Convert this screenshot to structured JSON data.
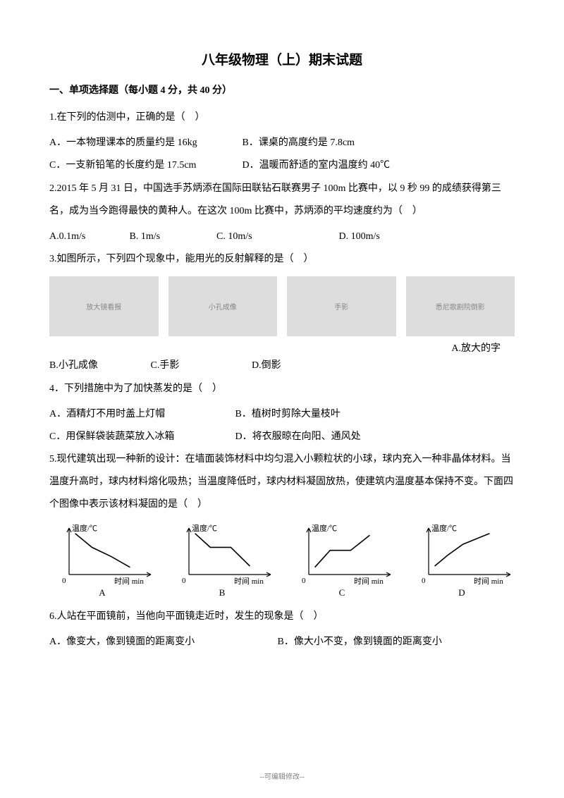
{
  "title": "八年级物理（上）期末试题",
  "section1_heading": "一、单项选择题（每小题 4 分，共 40 分）",
  "q1": {
    "stem": "1.在下列的估测中，正确的是（　）",
    "A": "A．一本物理课本的质量约是 16kg",
    "B": "B．课桌的高度约是 7.8cm",
    "C": "C．一支新铅笔的长度约是 17.5cm",
    "D": "D．温暖而舒适的室内温度约 40℃"
  },
  "q2": {
    "stem": "2.2015 年 5 月 31 日，中国选手苏炳添在国际田联钻石联赛男子 100m 比赛中，以 9 秒 99 的成绩获得第三名，成为当今跑得最快的黄种人。在这次 100m 比赛中，苏炳添的平均速度约为（　）",
    "A": "A.0.1m/s",
    "B": "B. 1m/s",
    "C": "C. 10m/s",
    "D": "D. 100m/s"
  },
  "q3": {
    "stem": "3.如图所示，下列四个现象中，能用光的反射解释的是（　）",
    "img_alt_A": "放大镜看报",
    "img_alt_B": "小孔成像",
    "img_alt_C": "手影",
    "img_alt_D": "悉尼歌剧院倒影",
    "opt_A_tail": "A.放大的字",
    "B": "B.小孔成像",
    "C": "C.手影",
    "D": "D.倒影"
  },
  "q4": {
    "stem": "4．下列措施中为了加快蒸发的是（　）",
    "A": "A．酒精灯不用时盖上灯帽",
    "B": "B．植树时剪除大量枝叶",
    "C": "C．用保鲜袋装蔬菜放入冰箱",
    "D": "D．将衣服晾在向阳、通风处"
  },
  "q5": {
    "stem": "5.现代建筑出现一种新的设计：在墙面装饰材料中均匀混入小颗粒状的小球，球内充入一种非晶体材料。当温度升高时，球内材料熔化吸热；当温度降低时，球内材料凝固放热，使建筑内温度基本保持不变。下面四个图像中表示该材料凝固的是（　）",
    "ylabel": "温度/℃",
    "xlabel": "时间 min",
    "labels": {
      "A": "A",
      "B": "B",
      "C": "C",
      "D": "D"
    },
    "axis_color": "#000000",
    "line_color": "#000000",
    "line_width": 1.6,
    "chart_bg": "#ffffff",
    "curves": {
      "A": [
        [
          8,
          68
        ],
        [
          30,
          45
        ],
        [
          55,
          30
        ],
        [
          80,
          12
        ]
      ],
      "B": [
        [
          8,
          68
        ],
        [
          28,
          45
        ],
        [
          55,
          45
        ],
        [
          80,
          14
        ]
      ],
      "C": [
        [
          8,
          12
        ],
        [
          28,
          40
        ],
        [
          55,
          40
        ],
        [
          80,
          65
        ]
      ],
      "D": [
        [
          8,
          14
        ],
        [
          25,
          32
        ],
        [
          45,
          50
        ],
        [
          80,
          68
        ]
      ]
    }
  },
  "q6": {
    "stem": "6.人站在平面镜前，当他向平面镜走近时，发生的现象是（　）",
    "A": "A．像变大，像到镜面的距离变小",
    "B": "B．像大小不变，像到镜面的距离变小"
  },
  "footer": "--可编辑修改--"
}
